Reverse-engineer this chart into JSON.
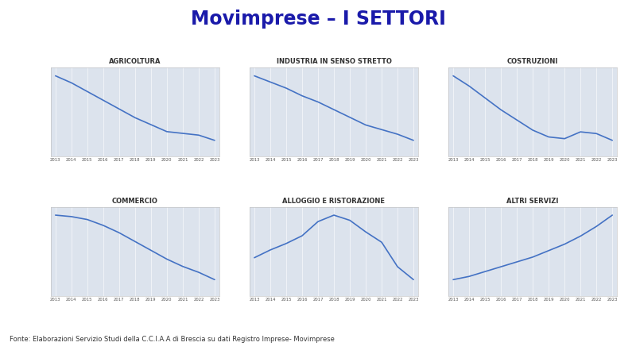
{
  "title": "Movimprese – I SETTORI",
  "title_color": "#1a1aaa",
  "header_bg": "#b0bfd8",
  "footer_text": "Fonte: Elaborazioni Servizio Studi della C.C.I.A.A di Brescia su dati Registro Imprese- Movimprese",
  "years": [
    2013,
    2014,
    2015,
    2016,
    2017,
    2018,
    2019,
    2020,
    2021,
    2022,
    2023
  ],
  "line_color": "#4472C4",
  "line_width": 1.2,
  "plot_bg": "#dce3ed",
  "panel_bg": "#ffffff",
  "grid_color": "#ffffff",
  "subplots": [
    {
      "title": "AGRICOLTURA",
      "values": [
        100,
        96,
        91,
        86,
        81,
        76,
        72,
        68,
        67,
        66,
        63
      ]
    },
    {
      "title": "INDUSTRIA IN SENSO STRETTO",
      "values": [
        100,
        96,
        92,
        87,
        83,
        78,
        73,
        68,
        65,
        62,
        58
      ]
    },
    {
      "title": "COSTRUZIONI",
      "values": [
        100,
        94,
        87,
        80,
        74,
        68,
        64,
        63,
        67,
        66,
        62
      ]
    },
    {
      "title": "COMMERCIO",
      "values": [
        100,
        99,
        97,
        93,
        88,
        82,
        76,
        70,
        65,
        61,
        56
      ]
    },
    {
      "title": "ALLOGGIO E RISTORAZIONE",
      "values": [
        62,
        68,
        73,
        79,
        90,
        95,
        91,
        82,
        74,
        55,
        45
      ]
    },
    {
      "title": "ALTRI SERVIZI",
      "values": [
        60,
        62,
        65,
        68,
        71,
        74,
        78,
        82,
        87,
        93,
        100
      ]
    }
  ]
}
